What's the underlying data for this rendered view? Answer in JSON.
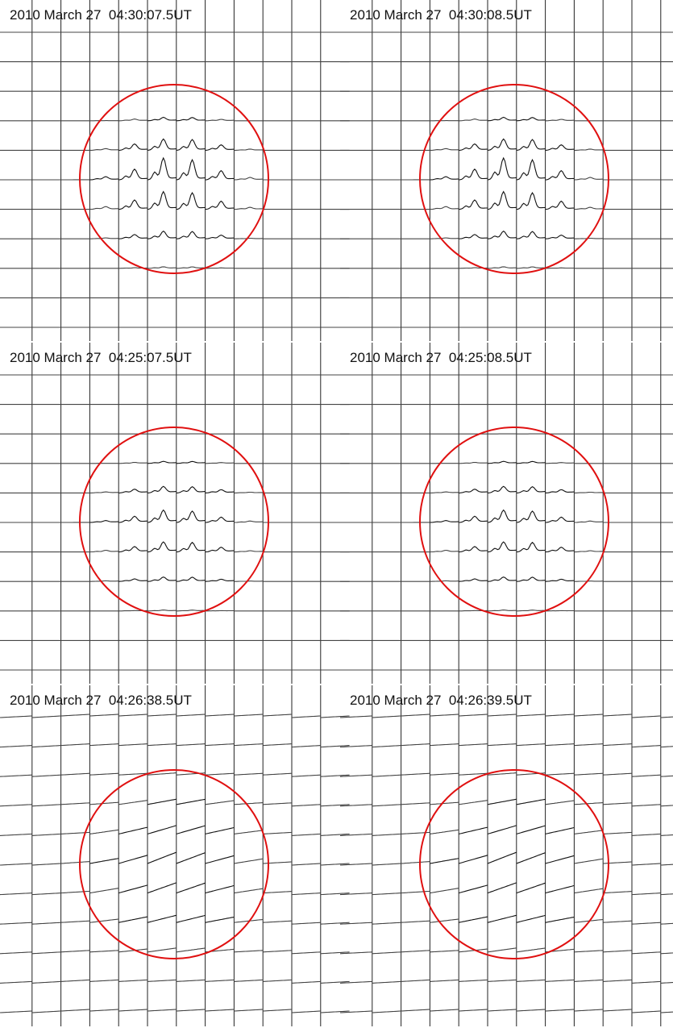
{
  "panels": [
    {
      "title": "2010 March 27  04:30:07.5UT"
    },
    {
      "title": "2010 March 27  04:30:08.5UT"
    },
    {
      "title": "2010 March 27  04:25:07.5UT"
    },
    {
      "title": "2010 March 27  04:25:08.5UT"
    },
    {
      "title": "2010 March 27  04:26:38.5UT"
    },
    {
      "title": "2010 March 27  04:26:39.5UT"
    }
  ]
}
